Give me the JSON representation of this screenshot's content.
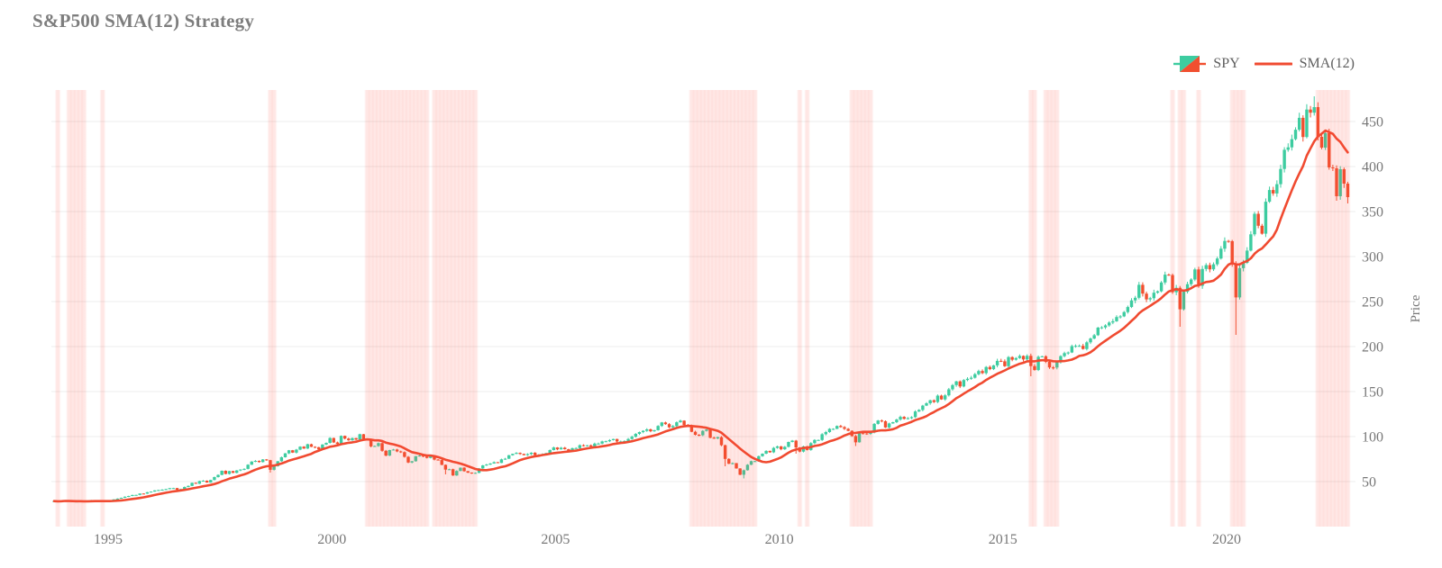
{
  "title": "S&P500 SMA(12) Strategy",
  "legend": {
    "items": [
      {
        "label": "SPY",
        "swatch": "candlestick-swatch"
      },
      {
        "label": "SMA(12)",
        "swatch": "line-swatch"
      }
    ]
  },
  "x_axis": {
    "ticks": [
      "1995",
      "2000",
      "2005",
      "2010",
      "2015",
      "2020"
    ]
  },
  "y_axis": {
    "title": "Price",
    "ticks": [
      50,
      100,
      150,
      200,
      250,
      300,
      350,
      400,
      450
    ],
    "range": [
      0,
      500
    ]
  },
  "colors": {
    "up": "#3DCCA0",
    "down": "#F14F2F",
    "sma": "#F04A30",
    "band": "#FF4636",
    "grid": "#ECECEC",
    "title_text": "#7D7D7D",
    "tick_text": "#777777",
    "legend_text": "#5E5E5E"
  },
  "chart_data": {
    "type": "candlestick",
    "series_name": "SPY",
    "overlay_series_name": "SMA(12)",
    "frequency": "monthly",
    "start": "1993-10",
    "end": "2022-09",
    "close": [
      28.3,
      28.0,
      28.3,
      29.2,
      28.4,
      27.6,
      27.9,
      28.1,
      27.4,
      28.2,
      29.3,
      28.5,
      29.1,
      28.0,
      28.4,
      29.1,
      30.2,
      31.1,
      32.0,
      33.2,
      34.0,
      35.1,
      35.2,
      36.7,
      36.6,
      38.2,
      38.9,
      40.2,
      40.6,
      41.0,
      41.6,
      42.7,
      42.8,
      40.9,
      41.7,
      44.0,
      45.2,
      48.6,
      47.6,
      50.6,
      51.0,
      48.9,
      51.8,
      55.0,
      57.4,
      62.0,
      58.5,
      61.7,
      59.7,
      62.4,
      63.4,
      64.1,
      68.7,
      72.2,
      73.0,
      71.7,
      74.6,
      73.8,
      63.1,
      67.1,
      72.6,
      77.0,
      81.4,
      84.8,
      82.2,
      85.5,
      88.8,
      86.7,
      91.5,
      88.6,
      88.2,
      85.8,
      91.2,
      93.0,
      98.4,
      93.5,
      91.9,
      100.8,
      97.8,
      95.9,
      98.3,
      96.7,
      102.6,
      97.2,
      96.8,
      89.1,
      89.5,
      92.7,
      84.2,
      78.9,
      85.0,
      85.6,
      83.5,
      82.7,
      77.5,
      71.2,
      72.6,
      78.2,
      78.9,
      77.8,
      76.3,
      79.2,
      74.4,
      73.9,
      68.6,
      63.3,
      63.7,
      56.8,
      61.8,
      65.4,
      61.6,
      60.0,
      59.1,
      59.7,
      64.6,
      68.0,
      68.9,
      70.1,
      71.5,
      70.7,
      74.7,
      75.4,
      79.3,
      80.8,
      81.9,
      80.7,
      79.4,
      80.5,
      82.1,
      79.4,
      79.7,
      80.5,
      81.7,
      85.0,
      87.9,
      85.8,
      87.6,
      86.0,
      84.4,
      87.1,
      87.2,
      90.4,
      89.6,
      90.3,
      88.8,
      92.2,
      92.2,
      94.6,
      94.8,
      96.0,
      97.3,
      94.5,
      94.6,
      95.1,
      97.3,
      99.8,
      103.0,
      105.0,
      106.4,
      108.0,
      105.9,
      107.1,
      111.8,
      115.7,
      113.8,
      110.3,
      111.7,
      115.9,
      117.7,
      112.8,
      112.0,
      105.3,
      102.0,
      101.5,
      106.3,
      107.8,
      98.7,
      97.9,
      99.3,
      90.4,
      75.2,
      69.8,
      70.5,
      64.6,
      57.6,
      62.6,
      68.7,
      72.7,
      72.7,
      78.2,
      81.0,
      84.1,
      82.5,
      87.4,
      89.1,
      85.9,
      88.6,
      94.0,
      95.5,
      87.9,
      83.3,
      89.1,
      85.1,
      92.7,
      96.2,
      96.2,
      102.6,
      105.0,
      108.6,
      108.6,
      111.8,
      110.5,
      108.6,
      106.4,
      100.6,
      93.6,
      103.8,
      103.5,
      103.0,
      104.5,
      114.1,
      117.8,
      117.1,
      110.1,
      114.6,
      116.0,
      118.9,
      121.9,
      119.7,
      120.4,
      121.6,
      127.9,
      129.6,
      134.4,
      137.0,
      140.3,
      138.4,
      145.5,
      141.3,
      145.8,
      152.5,
      157.2,
      161.3,
      155.7,
      162.8,
      164.2,
      165.4,
      169.3,
      172.8,
      170.5,
      177.3,
      174.9,
      179.1,
      184.1,
      183.6,
      178.2,
      188.3,
      185.4,
      187.2,
      189.6,
      185.7,
      189.7,
      178.3,
      173.9,
      188.6,
      189.2,
      183.0,
      176.8,
      176.7,
      183.0,
      189.4,
      192.7,
      193.4,
      200.5,
      200.8,
      200.8,
      197.3,
      204.7,
      208.9,
      212.6,
      221.0,
      221.3,
      223.5,
      226.7,
      228.1,
      232.8,
      233.5,
      238.3,
      243.9,
      251.3,
      254.2,
      268.6,
      258.8,
      252.4,
      253.7,
      259.8,
      261.4,
      271.2,
      279.9,
      279.4,
      260.4,
      265.3,
      241.4,
      260.9,
      269.3,
      274.5,
      285.7,
      267.5,
      286.2,
      290.5,
      285.8,
      291.4,
      297.8,
      308.7,
      317.3,
      317.1,
      291.4,
      254.6,
      287.1,
      293.0,
      306.6,
      324.7,
      347.5,
      334.2,
      325.4,
      360.9,
      373.9,
      370.1,
      380.4,
      397.3,
      418.6,
      421.3,
      430.4,
      440.9,
      454.1,
      432.8,
      463.3,
      459.8,
      466.0,
      433.0,
      421.0,
      437.0,
      399.0,
      398.0,
      367.0,
      397.0,
      381.0,
      366.0
    ],
    "wick_overrides": [
      {
        "index": 58,
        "low": 60.0
      },
      {
        "index": 105,
        "low": 58.0
      },
      {
        "index": 180,
        "low": 67.0
      },
      {
        "index": 185,
        "low": 53.5
      },
      {
        "index": 199,
        "low": 81.0
      },
      {
        "index": 215,
        "low": 89.5
      },
      {
        "index": 262,
        "low": 167.0
      },
      {
        "index": 302,
        "low": 222.0
      },
      {
        "index": 317,
        "low": 213.0
      },
      {
        "index": 338,
        "high": 478.0
      },
      {
        "index": 344,
        "low": 362.0
      },
      {
        "index": 347,
        "low": 359.0
      }
    ],
    "overlay_rule": "SMA(12) = 12-month simple moving average of close (expanding window at series start)",
    "shading_rule": "translucent red vertical band on every month whose close is below SMA(12)"
  }
}
